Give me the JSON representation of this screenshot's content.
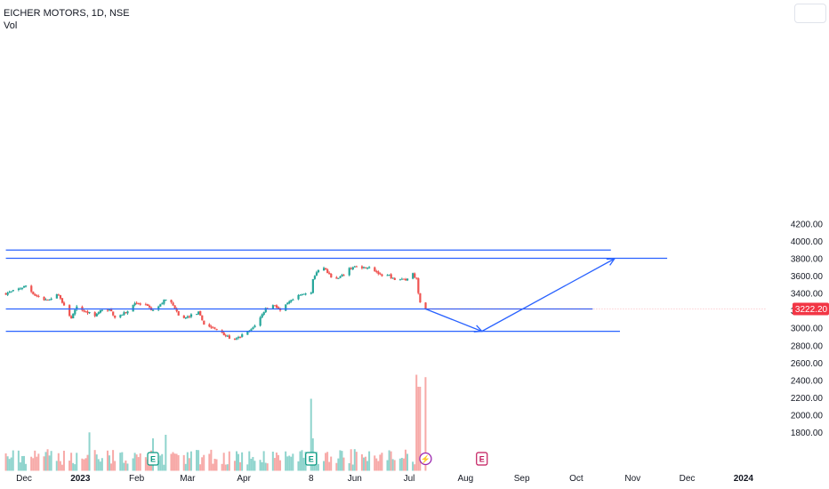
{
  "header": {
    "symbol_line": "EICHER MOTORS, 1D, NSE",
    "vol_label": "Vol"
  },
  "colors": {
    "up": "#26a69a",
    "down": "#ef5350",
    "vol_up": "#8fd4cd",
    "vol_down": "#f7a9a7",
    "drawing": "#2962ff",
    "price_tag": "#f23645",
    "earnings": "#089981",
    "dividend": "#9c27b0",
    "upcoming_earnings": "#c2185b"
  },
  "chart_data": {
    "type": "candlestick",
    "symbol": "EICHER MOTORS",
    "interval": "1D",
    "exchange": "NSE",
    "last_price_label": "3222.20",
    "y_axis_labels": [
      "4200.00",
      "4000.00",
      "3800.00",
      "3600.00",
      "3400.00",
      "3200.00",
      "3000.00",
      "2800.00",
      "2600.00",
      "2400.00",
      "2200.00",
      "2000.00",
      "1800.00"
    ],
    "y_axis_values": [
      4200,
      4000,
      3800,
      3600,
      3400,
      3200,
      3000,
      2800,
      2600,
      2400,
      2200,
      2000,
      1800
    ],
    "x_axis_labels": [
      "Dec",
      "2023",
      "Feb",
      "Mar",
      "Apr",
      "8",
      "Jun",
      "Jul",
      "Aug",
      "Sep",
      "Oct",
      "Nov",
      "Dec",
      "2024"
    ],
    "x_axis_dates": [
      "2022-12-01",
      "2023-01-01",
      "2023-02-01",
      "2023-03-01",
      "2023-04-01",
      "2023-05-08",
      "2023-06-01",
      "2023-07-01",
      "2023-08-01",
      "2023-09-01",
      "2023-10-01",
      "2023-11-01",
      "2023-12-01",
      "2024-01-01"
    ],
    "price_anchors": [
      [
        "2022-11-21",
        3400
      ],
      [
        "2022-11-24",
        3420
      ],
      [
        "2022-11-29",
        3460
      ],
      [
        "2022-12-02",
        3490
      ],
      [
        "2022-12-07",
        3380
      ],
      [
        "2022-12-12",
        3330
      ],
      [
        "2022-12-15",
        3340
      ],
      [
        "2022-12-20",
        3390
      ],
      [
        "2022-12-23",
        3250
      ],
      [
        "2022-12-27",
        3120
      ],
      [
        "2022-12-30",
        3240
      ],
      [
        "2023-01-04",
        3190
      ],
      [
        "2023-01-09",
        3150
      ],
      [
        "2023-01-12",
        3200
      ],
      [
        "2023-01-17",
        3220
      ],
      [
        "2023-01-20",
        3130
      ],
      [
        "2023-01-24",
        3160
      ],
      [
        "2023-01-27",
        3190
      ],
      [
        "2023-01-31",
        3300
      ],
      [
        "2023-02-03",
        3270
      ],
      [
        "2023-02-06",
        3260
      ],
      [
        "2023-02-10",
        3200
      ],
      [
        "2023-02-14",
        3270
      ],
      [
        "2023-02-17",
        3340
      ],
      [
        "2023-02-21",
        3270
      ],
      [
        "2023-02-24",
        3140
      ],
      [
        "2023-02-28",
        3120
      ],
      [
        "2023-03-03",
        3150
      ],
      [
        "2023-03-07",
        3180
      ],
      [
        "2023-03-10",
        3050
      ],
      [
        "2023-03-15",
        3000
      ],
      [
        "2023-03-20",
        2950
      ],
      [
        "2023-03-23",
        2900
      ],
      [
        "2023-03-27",
        2860
      ],
      [
        "2023-03-31",
        2920
      ],
      [
        "2023-04-05",
        2980
      ],
      [
        "2023-04-10",
        3120
      ],
      [
        "2023-04-13",
        3230
      ],
      [
        "2023-04-18",
        3270
      ],
      [
        "2023-04-21",
        3200
      ],
      [
        "2023-04-26",
        3300
      ],
      [
        "2023-05-02",
        3380
      ],
      [
        "2023-05-05",
        3400
      ],
      [
        "2023-05-08",
        3420
      ],
      [
        "2023-05-09",
        3570
      ],
      [
        "2023-05-11",
        3640
      ],
      [
        "2023-05-15",
        3700
      ],
      [
        "2023-05-18",
        3610
      ],
      [
        "2023-05-22",
        3560
      ],
      [
        "2023-05-25",
        3600
      ],
      [
        "2023-05-29",
        3680
      ],
      [
        "2023-06-02",
        3720
      ],
      [
        "2023-06-06",
        3700
      ],
      [
        "2023-06-09",
        3710
      ],
      [
        "2023-06-13",
        3650
      ],
      [
        "2023-06-16",
        3590
      ],
      [
        "2023-06-20",
        3610
      ],
      [
        "2023-06-23",
        3550
      ],
      [
        "2023-06-27",
        3570
      ],
      [
        "2023-06-30",
        3560
      ],
      [
        "2023-07-03",
        3640
      ],
      [
        "2023-07-05",
        3560
      ],
      [
        "2023-07-06",
        3400
      ],
      [
        "2023-07-07",
        3310
      ],
      [
        "2023-07-10",
        3222
      ]
    ],
    "volume_spikes": [
      [
        "2022-12-12",
        0.12
      ],
      [
        "2023-01-06",
        0.32
      ],
      [
        "2023-02-10",
        0.27
      ],
      [
        "2023-02-17",
        0.3
      ],
      [
        "2023-05-08",
        0.6
      ],
      [
        "2023-05-09",
        0.27
      ],
      [
        "2023-06-01",
        0.18
      ],
      [
        "2023-07-05",
        0.8
      ],
      [
        "2023-07-06",
        0.7
      ],
      [
        "2023-07-07",
        0.7
      ],
      [
        "2023-07-10",
        0.78
      ]
    ],
    "horizontal_levels": [
      {
        "price": 3900,
        "from": "2022-11-21",
        "to": "2023-10-20"
      },
      {
        "price": 3805,
        "from": "2022-11-21",
        "to": "2023-11-20"
      },
      {
        "price": 3222,
        "from": "2022-11-21",
        "to": "2023-10-10"
      },
      {
        "price": 2965,
        "from": "2022-11-21",
        "to": "2023-10-25"
      }
    ],
    "projection_path": [
      [
        "2023-07-10",
        3222
      ],
      [
        "2023-08-10",
        2965
      ],
      [
        "2023-10-22",
        3800
      ]
    ],
    "events": [
      {
        "type": "earnings",
        "date": "2023-02-10",
        "label": "E"
      },
      {
        "type": "earnings",
        "date": "2023-05-08",
        "label": "E"
      },
      {
        "type": "dividend",
        "date": "2023-07-10",
        "label": "⚡"
      },
      {
        "type": "upcoming_earnings",
        "date": "2023-08-10",
        "label": "E"
      }
    ],
    "grid": false,
    "legend": "top-left"
  }
}
